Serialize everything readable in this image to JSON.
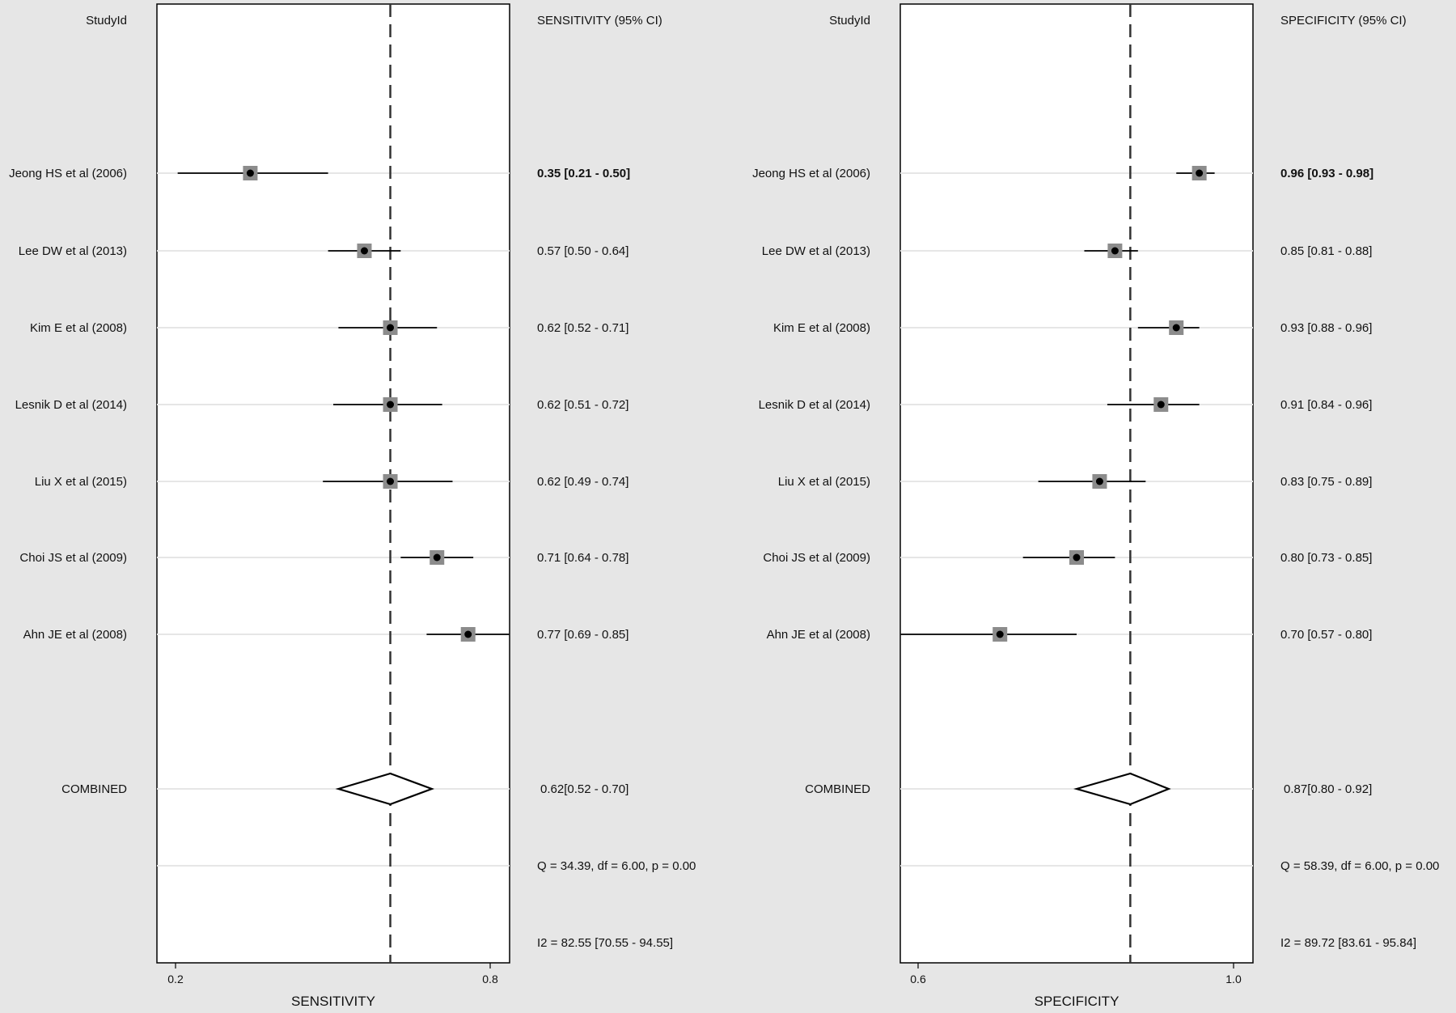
{
  "chart_data": [
    {
      "type": "forest",
      "id_header": "StudyId",
      "estimate_header": "SENSITIVITY (95% CI)",
      "xlabel": "SENSITIVITY",
      "xticks": [
        "0.2",
        "0.8"
      ],
      "xlim": [
        0.17,
        0.85
      ],
      "reference_line": 0.62,
      "studies": [
        {
          "name": "Jeong HS et al (2006)",
          "estimate": 0.35,
          "lower": 0.21,
          "upper": 0.5,
          "ci_text": "0.35 [0.21 - 0.50]",
          "bold": true
        },
        {
          "name": "Lee DW et al (2013)",
          "estimate": 0.57,
          "lower": 0.5,
          "upper": 0.64,
          "ci_text": "0.57 [0.50 - 0.64]"
        },
        {
          "name": "Kim E et al (2008)",
          "estimate": 0.62,
          "lower": 0.52,
          "upper": 0.71,
          "ci_text": "0.62 [0.52 - 0.71]"
        },
        {
          "name": "Lesnik D et al (2014)",
          "estimate": 0.62,
          "lower": 0.51,
          "upper": 0.72,
          "ci_text": "0.62 [0.51 - 0.72]"
        },
        {
          "name": "Liu X et al (2015)",
          "estimate": 0.62,
          "lower": 0.49,
          "upper": 0.74,
          "ci_text": "0.62 [0.49 - 0.74]"
        },
        {
          "name": "Choi JS et al (2009)",
          "estimate": 0.71,
          "lower": 0.64,
          "upper": 0.78,
          "ci_text": "0.71 [0.64 - 0.78]"
        },
        {
          "name": "Ahn JE et al (2008)",
          "estimate": 0.77,
          "lower": 0.69,
          "upper": 0.85,
          "ci_text": "0.77 [0.69 - 0.85]"
        }
      ],
      "combined": {
        "name": "COMBINED",
        "estimate": 0.62,
        "lower": 0.52,
        "upper": 0.7,
        "ci_text": "0.62[0.52 - 0.70]"
      },
      "heterogeneity": "Q = 34.39, df = 6.00, p =  0.00",
      "i2": "I2 = 82.55 [70.55 - 94.55]"
    },
    {
      "type": "forest",
      "id_header": "StudyId",
      "estimate_header": "SPECIFICITY (95% CI)",
      "xlabel": "SPECIFICITY",
      "xticks": [
        "0.6",
        "1.0"
      ],
      "xlim": [
        0.57,
        1.03
      ],
      "reference_line": 0.87,
      "studies": [
        {
          "name": "Jeong HS et al (2006)",
          "estimate": 0.96,
          "lower": 0.93,
          "upper": 0.98,
          "ci_text": "0.96 [0.93 - 0.98]",
          "bold": true
        },
        {
          "name": "Lee DW et al (2013)",
          "estimate": 0.85,
          "lower": 0.81,
          "upper": 0.88,
          "ci_text": "0.85 [0.81 - 0.88]"
        },
        {
          "name": "Kim E et al (2008)",
          "estimate": 0.93,
          "lower": 0.88,
          "upper": 0.96,
          "ci_text": "0.93 [0.88 - 0.96]"
        },
        {
          "name": "Lesnik D et al (2014)",
          "estimate": 0.91,
          "lower": 0.84,
          "upper": 0.96,
          "ci_text": "0.91 [0.84 - 0.96]"
        },
        {
          "name": "Liu X et al (2015)",
          "estimate": 0.83,
          "lower": 0.75,
          "upper": 0.89,
          "ci_text": "0.83 [0.75 - 0.89]"
        },
        {
          "name": "Choi JS et al (2009)",
          "estimate": 0.8,
          "lower": 0.73,
          "upper": 0.85,
          "ci_text": "0.80 [0.73 - 0.85]"
        },
        {
          "name": "Ahn JE et al (2008)",
          "estimate": 0.7,
          "lower": 0.57,
          "upper": 0.8,
          "ci_text": "0.70 [0.57 - 0.80]"
        }
      ],
      "combined": {
        "name": "COMBINED",
        "estimate": 0.87,
        "lower": 0.8,
        "upper": 0.92,
        "ci_text": "0.87[0.80 - 0.92]"
      },
      "heterogeneity": "Q = 58.39, df = 6.00, p =  0.00",
      "i2": "I2 = 89.72 [83.61 - 95.84]"
    }
  ],
  "colors": {
    "background": "#e6e6e6",
    "plot_area": "#ffffff",
    "box": "#8c8c8c",
    "point": "#000000",
    "gridline": "#e6e6e6"
  }
}
